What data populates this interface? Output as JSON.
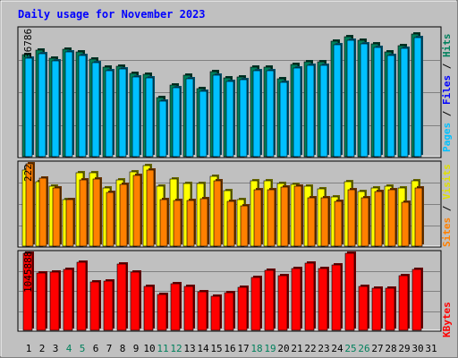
{
  "chart_data": [
    {
      "type": "bar",
      "title": "Daily usage for November 2023",
      "panel": "top",
      "ymax_label": "36786",
      "legend": [
        "Pages",
        "Files",
        "Hits"
      ],
      "categories": [
        "1",
        "2",
        "3",
        "4",
        "5",
        "6",
        "7",
        "8",
        "9",
        "10",
        "11",
        "12",
        "13",
        "14",
        "15",
        "16",
        "17",
        "18",
        "19",
        "20",
        "21",
        "22",
        "23",
        "24",
        "25",
        "26",
        "27",
        "28",
        "29",
        "30",
        "31"
      ],
      "weekend_days": [
        "4",
        "5",
        "11",
        "12",
        "18",
        "19",
        "25",
        "26"
      ],
      "series": [
        {
          "name": "Hits",
          "values": [
            30500,
            31800,
            29600,
            32300,
            31300,
            29300,
            26800,
            27200,
            25000,
            24600,
            17700,
            21600,
            24300,
            20500,
            25400,
            23600,
            24000,
            26700,
            26800,
            23300,
            27600,
            28400,
            28400,
            34500,
            36000,
            34800,
            33700,
            31400,
            33400,
            36800,
            0
          ]
        },
        {
          "name": "Files",
          "values": [
            29500,
            30800,
            28600,
            31300,
            30300,
            28300,
            25800,
            26200,
            24000,
            23600,
            16700,
            20600,
            23300,
            19500,
            24400,
            22600,
            23000,
            25700,
            25800,
            22300,
            26600,
            27400,
            27400,
            33500,
            35000,
            33800,
            32700,
            30400,
            32400,
            35800,
            0
          ]
        },
        {
          "name": "Pages",
          "values": [
            0,
            0,
            0,
            0,
            0,
            0,
            0,
            0,
            0,
            0,
            0,
            0,
            0,
            0,
            0,
            0,
            0,
            0,
            0,
            0,
            0,
            0,
            0,
            0,
            0,
            0,
            0,
            0,
            0,
            0,
            0
          ]
        }
      ],
      "colors": {
        "Hits": "#00805c",
        "Files": "#0000ff",
        "Pages": "#00c0ff"
      }
    },
    {
      "type": "bar",
      "panel": "middle",
      "ymax_label": "222",
      "legend": [
        "Sites",
        "Visits"
      ],
      "categories": [
        "1",
        "2",
        "3",
        "4",
        "5",
        "6",
        "7",
        "8",
        "9",
        "10",
        "11",
        "12",
        "13",
        "14",
        "15",
        "16",
        "17",
        "18",
        "19",
        "20",
        "21",
        "22",
        "23",
        "24",
        "25",
        "26",
        "27",
        "28",
        "29",
        "30",
        "31"
      ],
      "series": [
        {
          "name": "Visits",
          "values": [
            204,
            172,
            160,
            123,
            196,
            196,
            155,
            177,
            197,
            215,
            159,
            180,
            168,
            166,
            186,
            148,
            125,
            174,
            174,
            166,
            165,
            160,
            153,
            131,
            173,
            145,
            154,
            160,
            154,
            174,
            0
          ]
        },
        {
          "name": "Sites",
          "values": [
            220,
            182,
            156,
            123,
            176,
            180,
            144,
            165,
            188,
            202,
            125,
            121,
            121,
            127,
            174,
            120,
            108,
            150,
            150,
            158,
            160,
            128,
            128,
            120,
            151,
            128,
            145,
            150,
            117,
            155,
            0
          ]
        }
      ],
      "colors": {
        "Visits": "#ffff00",
        "Sites": "#ff8000"
      }
    },
    {
      "type": "bar",
      "panel": "bottom",
      "ymax_label": "1045888",
      "legend": [
        "KBytes"
      ],
      "categories": [
        "1",
        "2",
        "3",
        "4",
        "5",
        "6",
        "7",
        "8",
        "9",
        "10",
        "11",
        "12",
        "13",
        "14",
        "15",
        "16",
        "17",
        "18",
        "19",
        "20",
        "21",
        "22",
        "23",
        "24",
        "25",
        "26",
        "27",
        "28",
        "29",
        "30",
        "31"
      ],
      "series": [
        {
          "name": "KBytes",
          "values": [
            1045888,
            770000,
            790000,
            830000,
            920000,
            650000,
            670000,
            900000,
            785000,
            590000,
            480000,
            630000,
            600000,
            525000,
            455000,
            515000,
            580000,
            720000,
            810000,
            745000,
            840000,
            905000,
            840000,
            890000,
            1045888,
            595000,
            570000,
            570000,
            745000,
            825000,
            0
          ]
        }
      ],
      "colors": {
        "KBytes": "#ff0000"
      }
    }
  ]
}
